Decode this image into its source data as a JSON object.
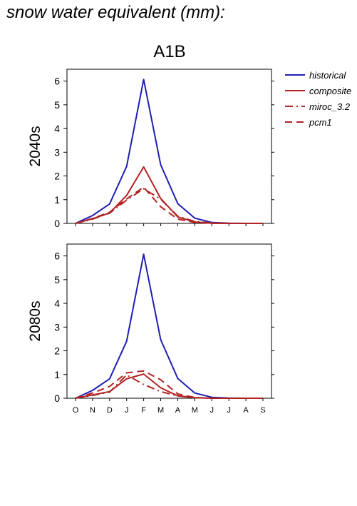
{
  "page_title": "snow water equivalent (mm):",
  "scenario_title": "A1B",
  "colors": {
    "historical": "#1f1fb4",
    "composite": "#b22222",
    "miroc_3.2": "#b22222",
    "pcm1": "#b22222"
  },
  "legend": [
    {
      "name": "historical",
      "label": "historical",
      "style": "solid",
      "color": "#1f1fb4"
    },
    {
      "name": "composite",
      "label": "composite",
      "style": "solid",
      "color": "#b22222"
    },
    {
      "name": "miroc",
      "label": "miroc_3.2",
      "style": "dashdot",
      "color": "#b22222"
    },
    {
      "name": "pcm1",
      "label": "pcm1",
      "style": "dashed",
      "color": "#b22222"
    }
  ],
  "chart_data": [
    {
      "type": "line",
      "period_label": "2040s",
      "categories": [
        "O",
        "N",
        "D",
        "J",
        "F",
        "M",
        "A",
        "M",
        "J",
        "J",
        "A",
        "S"
      ],
      "ylim": [
        0,
        6.5
      ],
      "yticks": [
        0,
        1,
        2,
        3,
        4,
        5,
        6
      ],
      "series": [
        {
          "name": "historical",
          "style": "solid",
          "values": [
            0,
            0.33,
            0.82,
            2.4,
            6.07,
            2.47,
            0.83,
            0.22,
            0.04,
            0.01,
            0,
            0
          ]
        },
        {
          "name": "composite",
          "style": "solid",
          "values": [
            0,
            0.2,
            0.44,
            1.18,
            2.38,
            1.05,
            0.27,
            0.06,
            0.01,
            0,
            0,
            0
          ]
        },
        {
          "name": "miroc_3.2",
          "style": "dashdot",
          "values": [
            0,
            0.18,
            0.43,
            0.98,
            1.46,
            1.02,
            0.3,
            0.08,
            0.02,
            0,
            0,
            0
          ]
        },
        {
          "name": "pcm1",
          "style": "dashed",
          "values": [
            0,
            0.21,
            0.47,
            1.03,
            1.53,
            0.7,
            0.18,
            0.04,
            0.01,
            0,
            0,
            0
          ]
        }
      ]
    },
    {
      "type": "line",
      "period_label": "2080s",
      "categories": [
        "O",
        "N",
        "D",
        "J",
        "F",
        "M",
        "A",
        "M",
        "J",
        "J",
        "A",
        "S"
      ],
      "ylim": [
        0,
        6.5
      ],
      "yticks": [
        0,
        1,
        2,
        3,
        4,
        5,
        6
      ],
      "series": [
        {
          "name": "historical",
          "style": "solid",
          "values": [
            0,
            0.33,
            0.82,
            2.4,
            6.07,
            2.47,
            0.83,
            0.22,
            0.04,
            0.01,
            0,
            0
          ]
        },
        {
          "name": "composite",
          "style": "solid",
          "values": [
            0,
            0.14,
            0.28,
            0.82,
            1.02,
            0.44,
            0.1,
            0.02,
            0,
            0,
            0,
            0
          ]
        },
        {
          "name": "miroc_3.2",
          "style": "dashdot",
          "values": [
            0,
            0.12,
            0.26,
            0.98,
            0.58,
            0.28,
            0.1,
            0.02,
            0,
            0,
            0,
            0
          ]
        },
        {
          "name": "pcm1",
          "style": "dashed",
          "values": [
            0,
            0.22,
            0.5,
            1.07,
            1.15,
            0.78,
            0.18,
            0.03,
            0,
            0,
            0,
            0
          ]
        }
      ]
    }
  ]
}
